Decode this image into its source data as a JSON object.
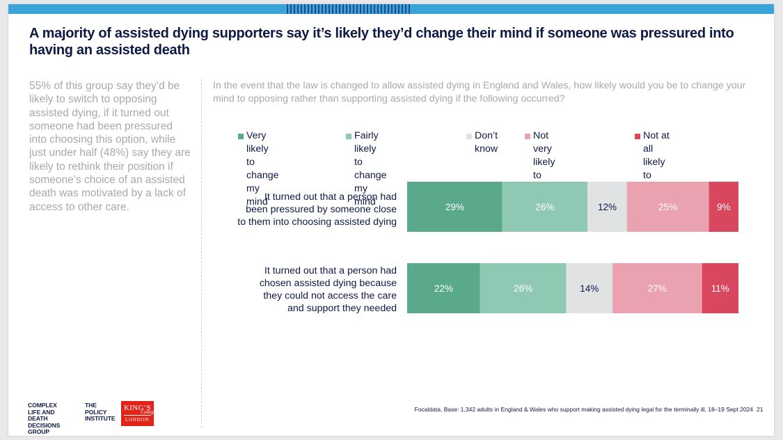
{
  "title": "A majority of assisted dying supporters say it’s likely they’d change their mind if someone was pressured into having an assisted death",
  "lede": "55% of this group say they’d be likely to switch to opposing assisted dying, if it turned out someone had been pressured into choosing this option, while just under half (48%) say they are likely to rethink their position if someone’s choice of an assisted death was motivated by a lack of access to other care.",
  "question": "In the event that the law is changed to allow assisted dying in England and Wales, how likely would you be to change your mind to opposing rather than supporting assisted dying if the following occurred?",
  "legend": [
    {
      "label": "Very likely to\nchange my mind",
      "color": "#59a98a"
    },
    {
      "label": "Fairly likely\nto change my mind",
      "color": "#8fc9b4"
    },
    {
      "label": "Don’t\nknow",
      "color": "#e1e2e4"
    },
    {
      "label": "Not very likely to\nchange my mind",
      "color": "#eaa2b0"
    },
    {
      "label": "Not at all likely to\nchange my mind",
      "color": "#d9475f"
    }
  ],
  "chart_data": {
    "type": "bar",
    "orientation": "horizontal",
    "stacked": true,
    "categories": [
      "It turned out that a person had\nbeen pressured by someone close\nto them into choosing assisted dying",
      "It turned out that a person had\nchosen assisted dying because\nthey could not access the care\nand support they needed"
    ],
    "series": [
      {
        "name": "Very likely to change my mind",
        "color": "#59a98a",
        "label_color": "#ffffff",
        "values": [
          29,
          22
        ]
      },
      {
        "name": "Fairly likely to change my mind",
        "color": "#8fc9b4",
        "label_color": "#ffffff",
        "values": [
          26,
          26
        ]
      },
      {
        "name": "Don’t know",
        "color": "#e1e2e4",
        "label_color": "#0e1a46",
        "values": [
          12,
          14
        ]
      },
      {
        "name": "Not very likely to change my mind",
        "color": "#eaa2b0",
        "label_color": "#ffffff",
        "values": [
          25,
          27
        ]
      },
      {
        "name": "Not at all likely to change my mind",
        "color": "#d9475f",
        "label_color": "#ffffff",
        "values": [
          9,
          11
        ]
      }
    ],
    "value_suffix": "%",
    "legend_position": "top",
    "grid": false
  },
  "logos": {
    "group": "COMPLEX\nLIFE AND DEATH\nDECISIONS GROUP",
    "institute": "THE\nPOLICY\nINSTITUTE",
    "kings_line1": "KING’S",
    "kings_line2": "College",
    "kings_line3": "LONDON"
  },
  "source": "Focaldata, Base: 1,342 adults in England & Wales who support making assisted dying legal for the terminally ill, 18–19 Sept 2024",
  "page_number": "21"
}
